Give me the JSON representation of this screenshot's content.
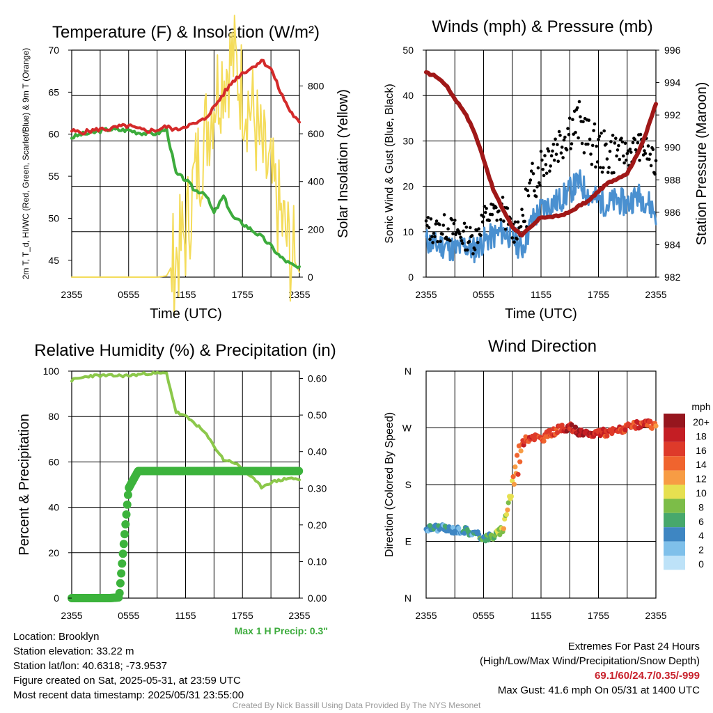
{
  "chart_data": [
    {
      "type": "line",
      "title": "Temperature (F) & Insolation (W/m²)",
      "xlabel": "Time (UTC)",
      "ylabel": "2m T, T_d, HI/WC (Red, Green, Scarlet/Blue) & 9m T (Orange)",
      "y2label": "Solar Insolation (Yellow)",
      "xticks": [
        "2355",
        "0555",
        "1155",
        "1755",
        "2355"
      ],
      "ylim": [
        43,
        70
      ],
      "yticks": [
        45,
        50,
        55,
        60,
        65,
        70
      ],
      "y2lim": [
        0,
        950
      ],
      "y2ticks": [
        0,
        200,
        400,
        600,
        800
      ],
      "x_hours": [
        0,
        1,
        2,
        3,
        4,
        5,
        6,
        7,
        8,
        9,
        10,
        11,
        12,
        13,
        14,
        15,
        16,
        17,
        18,
        19,
        20,
        21,
        22,
        23,
        24
      ],
      "series": [
        {
          "color": "#d42a2a",
          "axis": "left",
          "values": [
            60.4,
            60.2,
            60.4,
            60.6,
            60.6,
            60.9,
            61.0,
            60.6,
            60.4,
            60.5,
            60.9,
            60.5,
            61.0,
            61.2,
            61.8,
            63.2,
            64.8,
            66.3,
            67.3,
            67.9,
            68.8,
            67.8,
            65.0,
            62.8,
            61.3
          ]
        },
        {
          "color": "#3cab3c",
          "axis": "left",
          "values": [
            59.6,
            60.0,
            60.1,
            60.4,
            60.6,
            60.5,
            60.5,
            60.2,
            60.1,
            60.1,
            60.6,
            55.3,
            54.6,
            53.3,
            53.1,
            50.6,
            52.6,
            50.1,
            49.4,
            48.6,
            47.8,
            46.7,
            45.4,
            44.6,
            44.0
          ]
        },
        {
          "color": "#f4dc5a",
          "axis": "right",
          "values": [
            0,
            0,
            0,
            0,
            0,
            0,
            0,
            0,
            0,
            0,
            5,
            80,
            180,
            420,
            580,
            760,
            860,
            920,
            780,
            700,
            520,
            390,
            250,
            110,
            20
          ]
        }
      ]
    },
    {
      "type": "line",
      "title": "Winds (mph) & Pressure (mb)",
      "xlabel": "Time (UTC)",
      "ylabel": "Sonic Wind & Gust (Blue, Black)",
      "y2label": "Station Pressure (Maroon)",
      "xticks": [
        "2355",
        "0555",
        "1155",
        "1755",
        "2355"
      ],
      "ylim": [
        0,
        50
      ],
      "yticks": [
        0,
        10,
        20,
        30,
        40,
        50
      ],
      "y2lim": [
        982,
        996
      ],
      "y2ticks": [
        982,
        984,
        986,
        988,
        990,
        992,
        994,
        996
      ],
      "x_hours": [
        0,
        1,
        2,
        3,
        4,
        5,
        6,
        7,
        8,
        9,
        10,
        11,
        12,
        13,
        14,
        15,
        16,
        17,
        18,
        19,
        20,
        21,
        22,
        23,
        24
      ],
      "series": [
        {
          "color": "#4a90d0",
          "axis": "left",
          "values": [
            8,
            7,
            7,
            6,
            7,
            6,
            8,
            9,
            10,
            9,
            6,
            12,
            15,
            16,
            17,
            19,
            21,
            18,
            17,
            16,
            17,
            16,
            18,
            17,
            14
          ]
        },
        {
          "color": "#000000",
          "axis": "left",
          "values": [
            11,
            10,
            11,
            10,
            9,
            8,
            13,
            14,
            15,
            10,
            12,
            20,
            25,
            28,
            30,
            33,
            34,
            30,
            28,
            27,
            28,
            27,
            29,
            28,
            24
          ]
        },
        {
          "color": "#a01818",
          "axis": "right",
          "values": [
            994.6,
            994.4,
            993.9,
            993.0,
            992.2,
            991.0,
            989.3,
            987.4,
            986.2,
            985.1,
            984.6,
            985.1,
            985.7,
            985.7,
            985.8,
            986.0,
            986.4,
            986.7,
            987.3,
            987.8,
            988.1,
            988.4,
            989.5,
            990.9,
            992.7
          ]
        }
      ]
    },
    {
      "type": "line",
      "title": "Relative Humidity (%) & Precipitation (in)",
      "ylabel": "Percent & Precipitation",
      "xticks": [
        "2355",
        "0555",
        "1155",
        "1755",
        "2355"
      ],
      "ylim": [
        0,
        100
      ],
      "yticks": [
        0,
        20,
        40,
        60,
        80,
        100
      ],
      "y2lim": [
        0,
        0.62
      ],
      "y2ticks": [
        "0.00",
        "0.10",
        "0.20",
        "0.30",
        "0.40",
        "0.50",
        "0.60"
      ],
      "x_hours": [
        0,
        1,
        2,
        3,
        4,
        5,
        6,
        7,
        8,
        9,
        10,
        11,
        12,
        13,
        14,
        15,
        16,
        17,
        18,
        19,
        20,
        21,
        22,
        23,
        24
      ],
      "series": [
        {
          "color": "#8cc84b",
          "axis": "left",
          "values": [
            96,
            97,
            98,
            98,
            98,
            98,
            98,
            98.5,
            99,
            99,
            99,
            82,
            80,
            77,
            73,
            67,
            61,
            60,
            57,
            53,
            49,
            51,
            52,
            53,
            52
          ]
        },
        {
          "color": "#3cb33c",
          "axis": "right",
          "values": [
            0,
            0,
            0,
            0,
            0,
            0.002,
            0.3,
            0.347,
            0.347,
            0.347,
            0.347,
            0.347,
            0.347,
            0.347,
            0.347,
            0.347,
            0.347,
            0.347,
            0.347,
            0.347,
            0.347,
            0.347,
            0.347,
            0.347,
            0.347
          ]
        }
      ],
      "annotation": "Max 1 H Precip: 0.3\""
    },
    {
      "type": "scatter",
      "title": "Wind Direction",
      "ylabel": "Direction (Colored By Speed)",
      "xticks": [
        "2355",
        "0555",
        "1155",
        "1755",
        "2355"
      ],
      "yticks": [
        "N",
        "E",
        "S",
        "W",
        "N"
      ],
      "ylim_deg": [
        0,
        360
      ],
      "x_hours": [
        0,
        1,
        2,
        3,
        4,
        5,
        6,
        7,
        8,
        9,
        10,
        11,
        12,
        13,
        14,
        15,
        16,
        17,
        18,
        19,
        20,
        21,
        22,
        23,
        24
      ],
      "direction_deg": [
        110,
        112,
        110,
        108,
        108,
        102,
        96,
        98,
        108,
        180,
        245,
        258,
        252,
        262,
        268,
        272,
        262,
        258,
        264,
        262,
        266,
        270,
        274,
        276,
        273
      ],
      "speed_mph": [
        5,
        6,
        5,
        4,
        5,
        6,
        7,
        8,
        10,
        12,
        16,
        18,
        15,
        17,
        18,
        19,
        20,
        19,
        18,
        17,
        18,
        16,
        18,
        17,
        15
      ],
      "colorbar": {
        "label": "mph",
        "levels": [
          "20+",
          "18",
          "16",
          "14",
          "12",
          "10",
          "8",
          "6",
          "4",
          "2",
          "0"
        ],
        "colors": [
          "#96161e",
          "#c41e24",
          "#de3a2a",
          "#f0642e",
          "#f79c44",
          "#e6e050",
          "#7cbd48",
          "#47a86c",
          "#3e86c2",
          "#7fc0ea",
          "#bde2f8"
        ]
      }
    }
  ],
  "info_left": {
    "location": "Location: Brooklyn",
    "elevation": "Station elevation: 33.22 m",
    "latlon": "Station lat/lon: 40.6318; -73.9537",
    "created": "Figure created on Sat, 2025-05-31, at 23:59 UTC",
    "recent": "Most recent data timestamp: 2025/05/31 23:55:00"
  },
  "info_right": {
    "title": "Extremes For Past 24 Hours",
    "subtitle": "(High/Low/Max Wind/Precipitation/Snow Depth)",
    "values": "69.1/60/24.7/0.35/-999",
    "gust": "Max Gust: 41.6 mph On 05/31 at 1400 UTC"
  },
  "credit": "Created By Nick Bassill Using Data Provided By The NYS Mesonet"
}
